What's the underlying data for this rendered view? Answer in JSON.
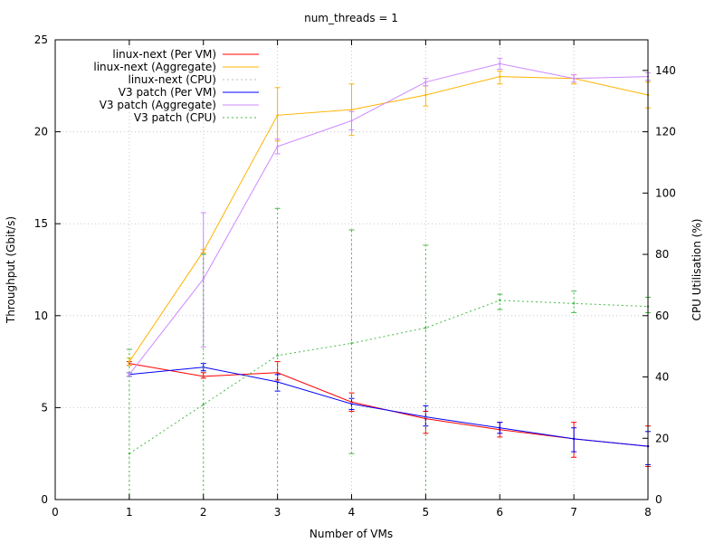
{
  "chart_data": {
    "type": "line",
    "title": "num_threads =  1",
    "xlabel": "Number of VMs",
    "ylabel": "Throughput (Gbit/s)",
    "y2label": "CPU Utilisation (%)",
    "xlim": [
      0,
      8
    ],
    "ylim": [
      0,
      25
    ],
    "y2lim": [
      0,
      150
    ],
    "x_ticks": [
      "0",
      "1",
      "2",
      "3",
      "4",
      "5",
      "6",
      "7",
      "8"
    ],
    "y_ticks": [
      "0",
      "5",
      "10",
      "15",
      "20",
      "25"
    ],
    "y2_ticks": [
      "0",
      "20",
      "40",
      "60",
      "80",
      "100",
      "120",
      "140"
    ],
    "grid": true,
    "legend_position": "top-left",
    "series": [
      {
        "name": "linux-next (Per VM)",
        "color": "#ff0000",
        "axis": "left",
        "style": "solid",
        "x": [
          1,
          2,
          3,
          4,
          5,
          6,
          7,
          8
        ],
        "y": [
          7.4,
          6.7,
          6.9,
          5.3,
          4.4,
          3.8,
          3.3,
          2.9
        ],
        "err_low": [
          7.3,
          6.6,
          6.5,
          4.8,
          3.6,
          3.4,
          2.3,
          1.8
        ],
        "err_high": [
          7.5,
          6.9,
          7.5,
          5.8,
          4.8,
          4.2,
          4.2,
          4.0
        ]
      },
      {
        "name": "linux-next (Aggregate)",
        "color": "#ffb300",
        "axis": "left",
        "style": "solid",
        "x": [
          1,
          2,
          3,
          4,
          5,
          6,
          7,
          8
        ],
        "y": [
          7.5,
          13.5,
          20.9,
          21.2,
          22.0,
          23.0,
          22.9,
          22.0
        ],
        "err_low": [
          7.3,
          13.4,
          19.5,
          19.8,
          21.4,
          22.6,
          22.6,
          21.3
        ],
        "err_high": [
          7.7,
          13.6,
          22.4,
          22.6,
          22.5,
          23.3,
          23.1,
          22.7
        ]
      },
      {
        "name": "linux-next (CPU)",
        "color": "#bdbdbd",
        "axis": "right",
        "style": "dotted",
        "x": [],
        "y": []
      },
      {
        "name": "V3 patch (Per VM)",
        "color": "#0000ff",
        "axis": "left",
        "style": "solid",
        "x": [
          1,
          2,
          3,
          4,
          5,
          6,
          7,
          8
        ],
        "y": [
          6.8,
          7.2,
          6.4,
          5.2,
          4.5,
          3.9,
          3.3,
          2.9
        ],
        "err_low": [
          6.7,
          7.0,
          5.9,
          4.9,
          4.0,
          3.6,
          2.6,
          1.9
        ],
        "err_high": [
          6.9,
          7.4,
          6.8,
          5.5,
          5.1,
          4.2,
          3.9,
          3.7
        ]
      },
      {
        "name": "V3 patch (Aggregate)",
        "color": "#cc88ff",
        "axis": "left",
        "style": "solid",
        "x": [
          1,
          2,
          3,
          4,
          5,
          6,
          7,
          8
        ],
        "y": [
          6.8,
          12.0,
          19.2,
          20.6,
          22.7,
          23.7,
          22.9,
          23.0
        ],
        "err_low": [
          6.7,
          8.3,
          18.8,
          20.1,
          22.5,
          23.4,
          22.7,
          22.8
        ],
        "err_high": [
          6.9,
          15.6,
          19.6,
          21.1,
          22.9,
          24.0,
          23.1,
          23.2
        ]
      },
      {
        "name": "V3 patch (CPU)",
        "color": "#44bb44",
        "axis": "right",
        "style": "dotted",
        "x": [
          1,
          2,
          3,
          4,
          5,
          6,
          7,
          8
        ],
        "y": [
          15,
          31,
          47,
          51,
          56,
          65,
          64,
          63
        ],
        "err_low": [
          0,
          0,
          0,
          15,
          0,
          62,
          61,
          61
        ],
        "err_high": [
          49,
          80,
          95,
          88,
          83,
          67,
          68,
          66
        ]
      }
    ]
  }
}
